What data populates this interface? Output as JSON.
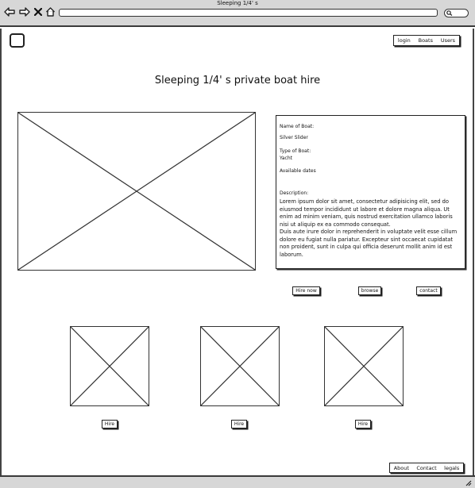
{
  "window": {
    "title": "Sleeping 1/4' s"
  },
  "icons": {
    "back": "arrow-left-icon",
    "forward": "arrow-right-icon",
    "stop": "close-icon",
    "home": "home-icon",
    "search": "search-icon",
    "resize": "resize-grip-icon"
  },
  "header": {
    "nav": [
      "login",
      "Boats",
      "Users"
    ]
  },
  "page": {
    "title": "Sleeping 1/4' s private boat hire"
  },
  "details": {
    "name_label": "Name of Boat:",
    "name_value": "Silver Slider",
    "type_label": "Type of Boat:",
    "type_value": "Yacht",
    "dates_label": "Available dates",
    "desc_label": "Description:",
    "desc_text": "Lorem ipsum dolor sit amet, consectetur adipisicing elit, sed do eiusmod tempor incididunt ut labore et dolore magna aliqua. Ut enim ad minim veniam, quis nostrud exercitation ullamco laboris nisi ut aliquip ex ea commodo consequat.",
    "desc_text2": "Duis aute irure dolor in reprehenderit in voluptate velit esse cillum dolore eu fugiat nulla pariatur. Excepteur sint occaecat cupidatat non proident, sunt in culpa qui officia deserunt mollit anim id est laborum."
  },
  "actions": {
    "hire_now": "Hire now",
    "browse": "browse",
    "contact": "contact"
  },
  "thumbnails": [
    {
      "button": "Hire"
    },
    {
      "button": "Hire"
    },
    {
      "button": "Hire"
    }
  ],
  "footer": {
    "nav": [
      "About",
      "Contact",
      "legals"
    ]
  }
}
